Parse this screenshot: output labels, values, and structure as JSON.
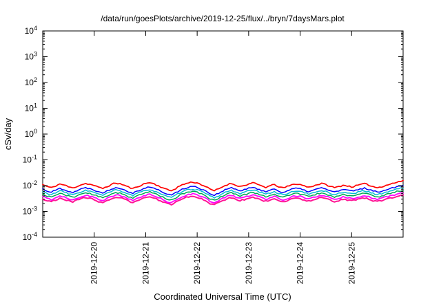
{
  "chart_data": {
    "type": "line",
    "title": "/data/run/goesPlots/archive/2019-12-25/flux/../bryn/7daysMars.plot",
    "xlabel": "Coordinated Universal Time (UTC)",
    "ylabel": "cSv/day",
    "y_scale": "log",
    "ylim": [
      0.0001,
      10000
    ],
    "y_tick_exponents": [
      4,
      3,
      2,
      1,
      0,
      -1,
      -2,
      -3,
      -4
    ],
    "x_ticks": [
      "2019-12-20",
      "2019-12-21",
      "2019-12-22",
      "2019-12-23",
      "2019-12-24",
      "2019-12-25"
    ],
    "x_tick_positions_days": [
      1,
      2,
      3,
      4,
      5,
      6
    ],
    "x_total_days": 7,
    "grid": false,
    "legend": "none",
    "jitter_amp": 0.06,
    "base_shape": [
      0.95,
      0.8,
      0.72,
      0.85,
      1.0,
      0.92,
      0.78,
      0.7,
      0.82,
      0.95,
      1.05,
      0.98,
      0.88,
      0.74,
      0.68,
      0.8,
      0.95,
      1.1,
      1.02,
      0.9,
      0.76,
      0.66,
      0.78,
      0.92,
      1.05,
      1.15,
      1.0,
      0.85,
      0.72,
      0.6,
      0.55,
      0.68,
      0.85,
      1.0,
      1.12,
      1.2,
      1.1,
      0.95,
      0.8,
      0.62,
      0.55,
      0.65,
      0.8,
      0.95,
      1.05,
      0.92,
      0.8,
      0.88,
      1.0,
      1.1,
      0.98,
      0.85,
      0.75,
      0.85,
      0.95,
      0.8,
      0.7,
      0.8,
      0.92,
      1.02,
      0.95,
      0.85,
      0.75,
      0.85,
      0.95,
      1.05,
      0.95,
      0.82,
      0.72,
      0.8,
      0.9,
      0.85,
      0.78,
      0.85,
      0.95,
      1.02,
      0.92,
      0.8,
      0.72,
      0.8,
      0.9,
      1.0,
      1.1,
      1.25,
      1.3
    ],
    "series": [
      {
        "name": "red",
        "color": "#ff0000",
        "scale": 0.0115,
        "width": 1.7,
        "jitter_seed": 11
      },
      {
        "name": "blue",
        "color": "#0000ff",
        "scale": 0.0078,
        "width": 1.5,
        "jitter_seed": 22
      },
      {
        "name": "cyan",
        "color": "#00bcd4",
        "scale": 0.0062,
        "width": 1.5,
        "jitter_seed": 33
      },
      {
        "name": "green",
        "color": "#00a651",
        "scale": 0.005,
        "width": 1.5,
        "jitter_seed": 44
      },
      {
        "name": "magenta",
        "color": "#ff00ff",
        "scale": 0.004,
        "width": 1.8,
        "jitter_seed": 55
      },
      {
        "name": "pink",
        "color": "#ff1493",
        "scale": 0.0033,
        "width": 2.0,
        "jitter_seed": 66
      }
    ]
  }
}
